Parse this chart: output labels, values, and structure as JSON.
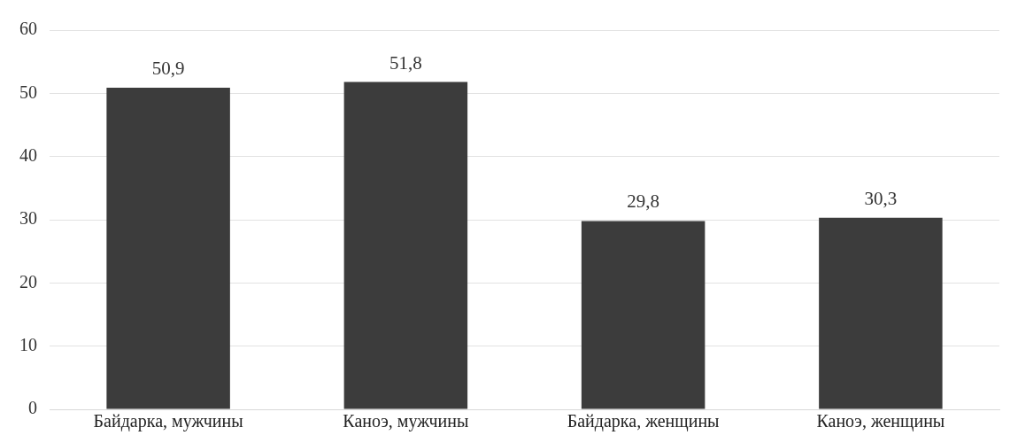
{
  "chart_data": {
    "type": "bar",
    "categories": [
      "Байдарка, мужчины",
      "Каноэ, мужчины",
      "Байдарка, женщины",
      "Каноэ, женщины"
    ],
    "values": [
      50.9,
      51.8,
      29.8,
      30.3
    ],
    "value_labels": [
      "50,9",
      "51,8",
      "29,8",
      "30,3"
    ],
    "color": "#3c3c3c",
    "ylim": [
      0,
      60
    ],
    "yticks": [
      0,
      10,
      20,
      30,
      40,
      50,
      60
    ],
    "grid": "y"
  }
}
